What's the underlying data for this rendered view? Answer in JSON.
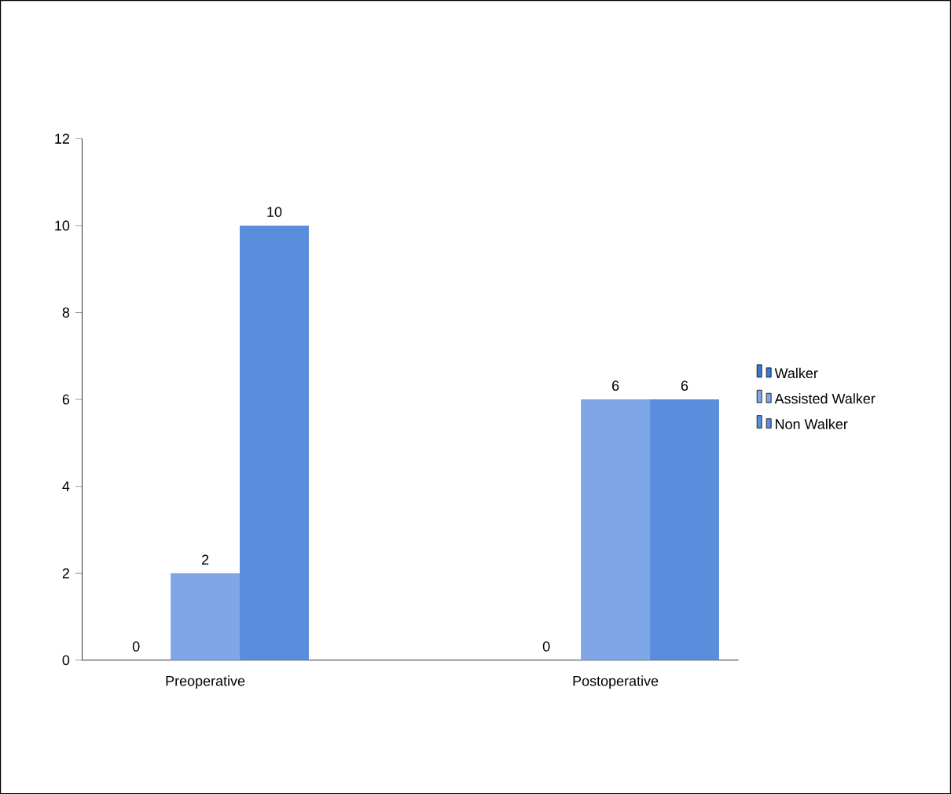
{
  "chart_data": {
    "type": "bar",
    "categories": [
      "Preoperative",
      "Postoperative"
    ],
    "series": [
      {
        "name": "Walker",
        "color": "#3b78d4",
        "values": [
          0,
          0
        ],
        "value_labels": [
          null,
          null
        ]
      },
      {
        "name": "Assisted Walker",
        "color": "#7fa6e6",
        "values": [
          2,
          6
        ],
        "value_labels": [
          "2",
          "6"
        ]
      },
      {
        "name": "Non Walker",
        "color": "#5a8ddc",
        "values": [
          10,
          6
        ],
        "value_labels": [
          "10",
          "6"
        ]
      }
    ],
    "annotations": [
      "0",
      "0"
    ],
    "ylim": [
      0,
      12
    ],
    "yticks": [
      0,
      2,
      4,
      6,
      8,
      10,
      12
    ],
    "legend": "right",
    "grid": false
  }
}
